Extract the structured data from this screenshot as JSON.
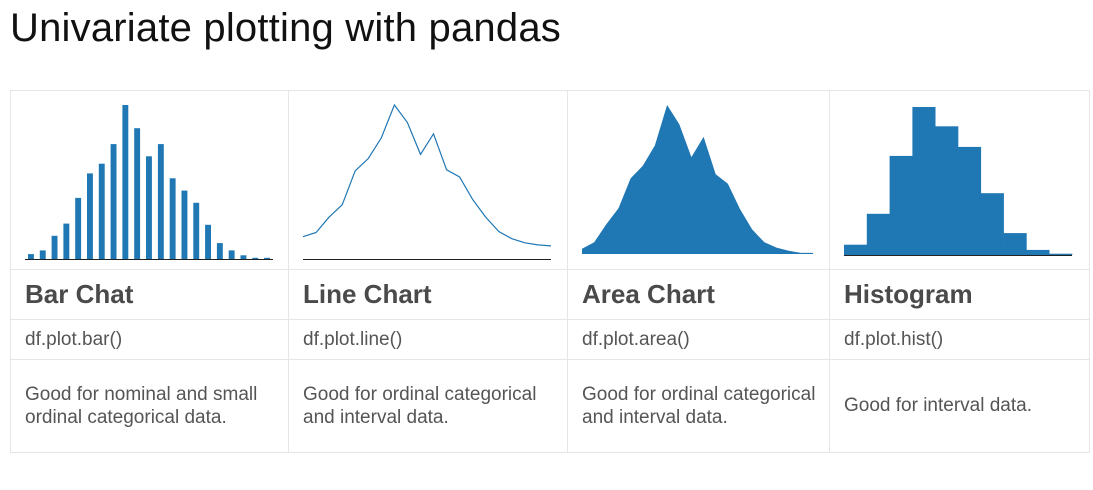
{
  "page": {
    "title": "Univariate plotting with pandas"
  },
  "colors": {
    "series": "#1f77b4",
    "axis": "#222222",
    "cell_border": "#e6e6e6"
  },
  "columns": [
    {
      "name": "Bar Chat",
      "code": "df.plot.bar()",
      "description": "Good for nominal and small ordinal categorical data."
    },
    {
      "name": "Line Chart",
      "code": "df.plot.line()",
      "description": "Good for ordinal categorical and interval data."
    },
    {
      "name": "Area Chart",
      "code": "df.plot.area()",
      "description": "Good for ordinal categorical and interval data."
    },
    {
      "name": "Histogram",
      "code": "df.plot.hist()",
      "description": "Good for interval data."
    }
  ],
  "chart_data": [
    {
      "type": "bar",
      "values": [
        4,
        7,
        19,
        29,
        50,
        70,
        78,
        94,
        126,
        107,
        84,
        94,
        66,
        56,
        46,
        28,
        13,
        7,
        3,
        1,
        1
      ]
    },
    {
      "type": "line",
      "values": [
        12,
        16,
        31,
        43,
        76,
        88,
        108,
        140,
        123,
        92,
        112,
        77,
        70,
        48,
        31,
        17,
        10,
        6,
        4,
        3
      ]
    },
    {
      "type": "area",
      "values": [
        5,
        11,
        28,
        43,
        71,
        83,
        102,
        140,
        122,
        91,
        110,
        75,
        66,
        42,
        23,
        11,
        6,
        3,
        1,
        1
      ]
    },
    {
      "type": "histogram",
      "values": [
        8,
        32,
        77,
        115,
        100,
        84,
        48,
        17,
        4,
        1
      ]
    }
  ]
}
